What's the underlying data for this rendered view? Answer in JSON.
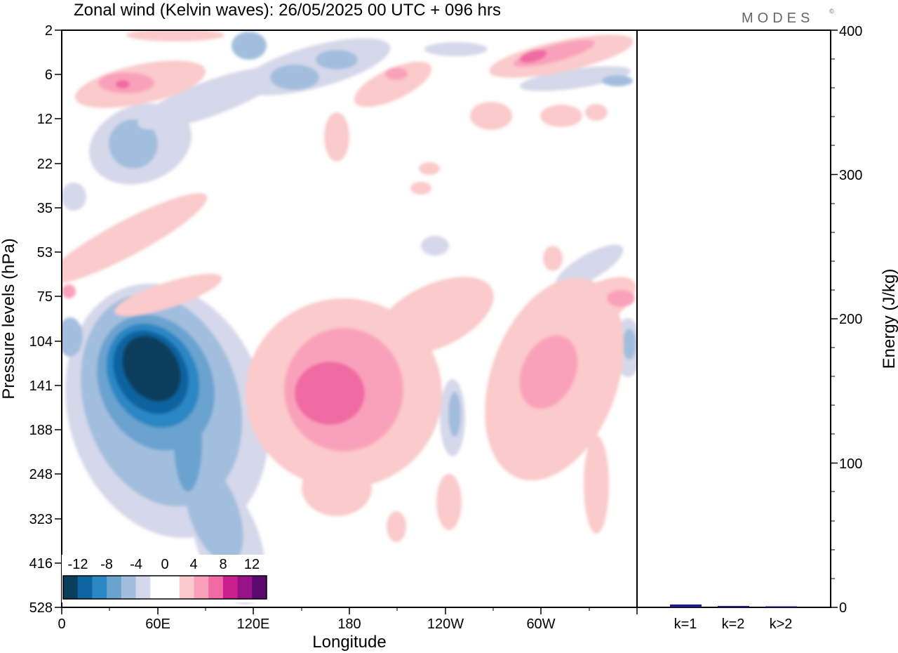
{
  "title": "Zonal wind (Kelvin waves):  26/05/2025  00 UTC  + 096 hrs",
  "brand": "MODES",
  "brand_mark": "©",
  "chart_data": [
    {
      "type": "heatmap",
      "title": "Zonal wind (Kelvin waves):  26/05/2025  00 UTC  + 096 hrs",
      "xlabel": "Longitude",
      "ylabel": "Pressure levels (hPa)",
      "x_ticks": [
        "0",
        "60E",
        "120E",
        "180",
        "120W",
        "60W"
      ],
      "x_tick_positions_deg": [
        0,
        60,
        120,
        180,
        240,
        300
      ],
      "xlim_deg": [
        0,
        360
      ],
      "y_ticks": [
        "2",
        "6",
        "12",
        "22",
        "35",
        "53",
        "75",
        "104",
        "141",
        "188",
        "248",
        "323",
        "416",
        "528"
      ],
      "y_scale": "level-index, inverted",
      "grid": false,
      "colorbar": {
        "labels": [
          "-12",
          "-8",
          "-4",
          "0",
          "4",
          "8",
          "12"
        ],
        "levels": [
          -12,
          -8,
          -4,
          0,
          4,
          8,
          12
        ],
        "colors": [
          "#0b3d5c",
          "#0e64a0",
          "#2b87c4",
          "#6ba3cf",
          "#a2bede",
          "#d5d8ea",
          "#ffffff",
          "#ffffff",
          "#fbcaca",
          "#f9a1bb",
          "#f06aa3",
          "#ca1f8c",
          "#951289",
          "#5a0a6f"
        ],
        "placement": "bottom-left"
      },
      "features": [
        {
          "sign": "negative",
          "peak": -14,
          "lon": 42,
          "level": 8.8
        },
        {
          "sign": "negative",
          "peak": -3,
          "lon": 39,
          "level": 2.3
        },
        {
          "sign": "negative",
          "peak": -3,
          "lon": 125,
          "level": 0.8
        },
        {
          "sign": "negative",
          "peak": -4,
          "lon": 242,
          "level": 9.6
        },
        {
          "sign": "negative",
          "peak": -2,
          "lon": 3,
          "level": 8.2
        },
        {
          "sign": "positive",
          "peak": 9,
          "lon": 156,
          "level": 9.2
        },
        {
          "sign": "positive",
          "peak": 6,
          "lon": 288,
          "level": 9.0
        },
        {
          "sign": "positive",
          "peak": 3,
          "lon": 302,
          "level": 8.4
        },
        {
          "sign": "positive",
          "peak": 4,
          "lon": 104,
          "level": 3.2
        },
        {
          "sign": "positive",
          "peak": 6,
          "lon": 262,
          "level": 0.5
        },
        {
          "sign": "positive",
          "peak": 4,
          "lon": 33,
          "level": 1.3
        },
        {
          "sign": "positive",
          "peak": 3,
          "lon": 207,
          "level": 1.9
        },
        {
          "sign": "positive",
          "peak": 3,
          "lon": 190,
          "level": 0.9
        }
      ]
    },
    {
      "type": "bar",
      "ylabel": "Energy (J/kg)",
      "categories": [
        "k=1",
        "k=2",
        "k>2"
      ],
      "values": [
        2,
        1,
        0.5
      ],
      "ylim": [
        0,
        400
      ],
      "y_ticks": [
        "0",
        "100",
        "200",
        "300",
        "400"
      ],
      "bar_color": "#1a1a8c"
    }
  ]
}
